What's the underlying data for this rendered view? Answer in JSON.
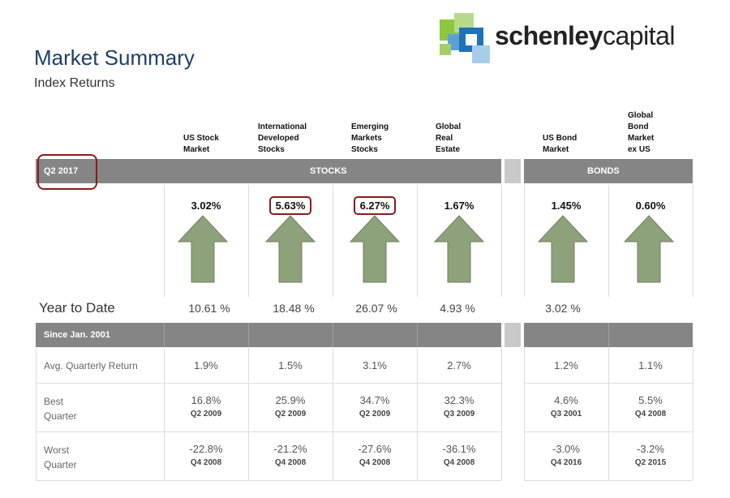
{
  "header": {
    "title": "Market Summary",
    "subtitle": "Index Returns",
    "logo_text_bold": "schenley",
    "logo_text_light": "capital"
  },
  "columns": [
    {
      "label": "US Stock\nMarket"
    },
    {
      "label": "International\nDeveloped\nStocks"
    },
    {
      "label": "Emerging\nMarkets\nStocks"
    },
    {
      "label": "Global\nReal\nEstate"
    },
    {
      "label": "US Bond\nMarket"
    },
    {
      "label": "Global\nBond\nMarket\nex US"
    }
  ],
  "period_bar": {
    "period": "Q2 2017",
    "stocks": "STOCKS",
    "bonds": "BONDS"
  },
  "quarter_returns": [
    "3.02%",
    "5.63%",
    "6.27%",
    "1.67%",
    "1.45%",
    "0.60%"
  ],
  "ytd": {
    "label": "Year to Date",
    "values": [
      "10.61 %",
      "18.48 %",
      "26.07 %",
      "4.93 %",
      "3.02 %",
      ""
    ]
  },
  "since_bar": {
    "label": "Since Jan. 2001"
  },
  "rows": {
    "avg": {
      "label": "Avg. Quarterly Return",
      "values": [
        "1.9%",
        "1.5%",
        "3.1%",
        "2.7%",
        "1.2%",
        "1.1%"
      ]
    },
    "best": {
      "label_line1": "Best",
      "label_line2": "Quarter",
      "values": [
        "16.8%",
        "25.9%",
        "34.7%",
        "32.3%",
        "4.6%",
        "5.5%"
      ],
      "quarters": [
        "Q2 2009",
        "Q2 2009",
        "Q2 2009",
        "Q3 2009",
        "Q3 2001",
        "Q4 2008"
      ]
    },
    "worst": {
      "label_line1": "Worst",
      "label_line2": "Quarter",
      "values": [
        "-22.8%",
        "-21.2%",
        "-27.6%",
        "-36.1%",
        "-3.0%",
        "-3.2%"
      ],
      "quarters": [
        "Q4 2008",
        "Q4 2008",
        "Q4 2008",
        "Q4 2008",
        "Q4 2016",
        "Q2 2015"
      ]
    }
  },
  "colors": {
    "arrow": "#8da27a",
    "bar": "#858585",
    "title": "#1f3f66",
    "highlight": "#8b1a1a"
  },
  "icons": {
    "arrow": "up-arrow-icon"
  }
}
